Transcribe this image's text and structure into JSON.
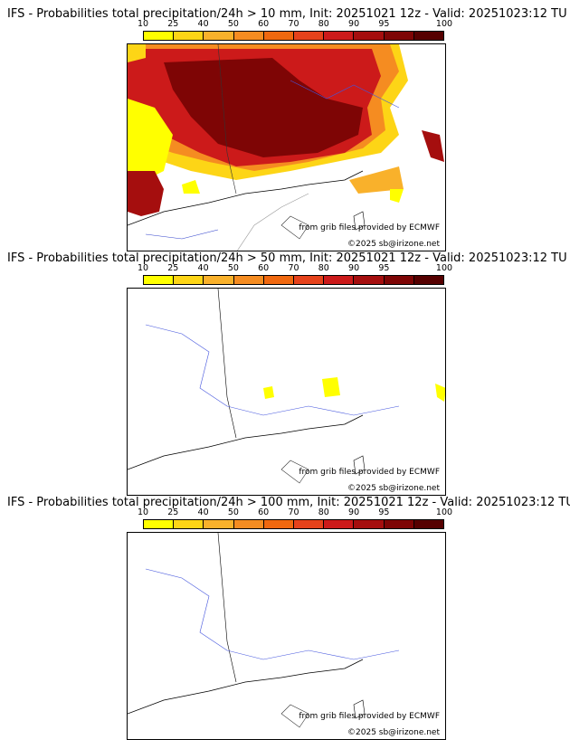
{
  "colorbar": {
    "ticks": [
      "10",
      "25",
      "40",
      "50",
      "60",
      "70",
      "80",
      "90",
      "95",
      "100"
    ],
    "colors": [
      "#ffff00",
      "#fdd516",
      "#f9b12b",
      "#f58c21",
      "#f0680f",
      "#e6421b",
      "#cc1a1a",
      "#a50e0e",
      "#7e0505",
      "#560000"
    ]
  },
  "panels": [
    {
      "title": "IFS - Probabilities total precipitation/24h > 10 mm, Init: 20251021 12z - Valid: 20251023:12 TU",
      "source": "from grib files provided by ECMWF",
      "copyright": "©2025 sb@irizone.net"
    },
    {
      "title": "IFS - Probabilities total precipitation/24h > 50 mm, Init: 20251021 12z - Valid: 20251023:12 TU",
      "source": "from grib files provided by ECMWF",
      "copyright": "©2025 sb@irizone.net"
    },
    {
      "title": "IFS - Probabilities total precipitation/24h > 100 mm, Init: 20251021 12z - Valid: 20251023:12 TU",
      "source": "from grib files provided by ECMWF",
      "copyright": "©2025 sb@irizone.net"
    }
  ]
}
